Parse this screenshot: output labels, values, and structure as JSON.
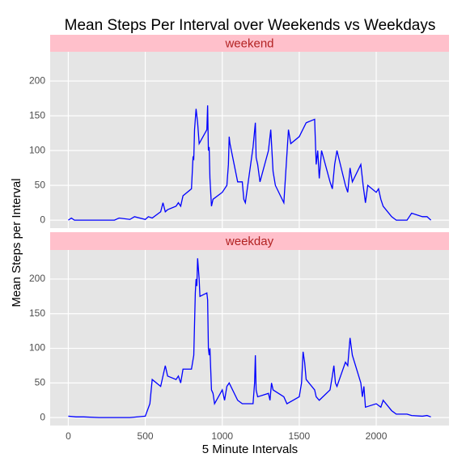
{
  "chart_data": {
    "type": "line",
    "title": "Mean Steps Per Interval over Weekends vs Weekdays",
    "x_label": "5 Minute Intervals",
    "y_label": "Mean Steps per Interval",
    "xlim": [
      -117.75,
      2472.75
    ],
    "xticks": [
      0,
      500,
      1000,
      1500,
      2000
    ],
    "ylim": [
      -11.5,
      242
    ],
    "yticks": [
      0,
      50,
      100,
      150,
      200
    ],
    "grid": true,
    "strip_color": "#ffc0cb",
    "series": [
      {
        "name": "weekend",
        "color": "#0000ff",
        "x": [
          0,
          20,
          40,
          100,
          200,
          300,
          330,
          400,
          430,
          500,
          520,
          545,
          600,
          615,
          630,
          645,
          700,
          715,
          730,
          745,
          800,
          810,
          815,
          820,
          830,
          840,
          845,
          850,
          900,
          905,
          910,
          915,
          920,
          930,
          940,
          1000,
          1030,
          1040,
          1045,
          1050,
          1100,
          1130,
          1140,
          1150,
          1200,
          1215,
          1220,
          1230,
          1245,
          1300,
          1315,
          1330,
          1345,
          1400,
          1430,
          1445,
          1500,
          1545,
          1600,
          1610,
          1620,
          1630,
          1645,
          1700,
          1715,
          1730,
          1745,
          1800,
          1815,
          1830,
          1845,
          1900,
          1915,
          1930,
          1945,
          2000,
          2015,
          2030,
          2045,
          2100,
          2130,
          2200,
          2215,
          2230,
          2300,
          2330,
          2355
        ],
        "values": [
          0,
          3,
          0,
          0,
          0,
          0,
          3,
          1,
          5,
          1,
          5,
          3,
          12,
          25,
          12,
          15,
          20,
          25,
          20,
          35,
          45,
          90,
          88,
          130,
          160,
          140,
          125,
          110,
          130,
          165,
          100,
          105,
          60,
          20,
          30,
          40,
          50,
          80,
          120,
          110,
          55,
          55,
          30,
          25,
          105,
          140,
          90,
          80,
          55,
          100,
          130,
          70,
          50,
          25,
          130,
          110,
          120,
          140,
          145,
          80,
          100,
          60,
          100,
          55,
          45,
          80,
          100,
          50,
          40,
          75,
          55,
          80,
          50,
          25,
          50,
          40,
          45,
          30,
          20,
          5,
          0,
          0,
          5,
          10,
          5,
          5,
          0
        ]
      },
      {
        "name": "weekday",
        "color": "#0000ff",
        "x": [
          0,
          50,
          100,
          200,
          300,
          400,
          500,
          530,
          545,
          600,
          615,
          630,
          645,
          700,
          715,
          730,
          745,
          800,
          815,
          825,
          830,
          835,
          840,
          845,
          850,
          855,
          900,
          905,
          910,
          915,
          920,
          930,
          940,
          950,
          1000,
          1015,
          1030,
          1045,
          1100,
          1130,
          1200,
          1210,
          1215,
          1220,
          1230,
          1300,
          1310,
          1320,
          1330,
          1400,
          1420,
          1500,
          1515,
          1525,
          1535,
          1545,
          1600,
          1610,
          1630,
          1700,
          1715,
          1725,
          1735,
          1745,
          1800,
          1815,
          1830,
          1845,
          1900,
          1910,
          1920,
          1930,
          2000,
          2030,
          2045,
          2100,
          2130,
          2200,
          2230,
          2300,
          2330,
          2355
        ],
        "values": [
          2,
          1,
          1,
          0,
          0,
          0,
          2,
          20,
          55,
          45,
          60,
          75,
          60,
          55,
          60,
          50,
          70,
          70,
          90,
          180,
          200,
          190,
          230,
          215,
          200,
          175,
          180,
          170,
          100,
          90,
          100,
          40,
          35,
          20,
          40,
          25,
          45,
          50,
          25,
          20,
          20,
          50,
          90,
          40,
          30,
          35,
          25,
          50,
          40,
          30,
          20,
          30,
          50,
          95,
          80,
          55,
          40,
          30,
          25,
          40,
          60,
          75,
          50,
          45,
          80,
          75,
          115,
          90,
          50,
          30,
          45,
          15,
          20,
          15,
          25,
          10,
          5,
          5,
          3,
          2,
          3,
          1
        ]
      }
    ]
  }
}
